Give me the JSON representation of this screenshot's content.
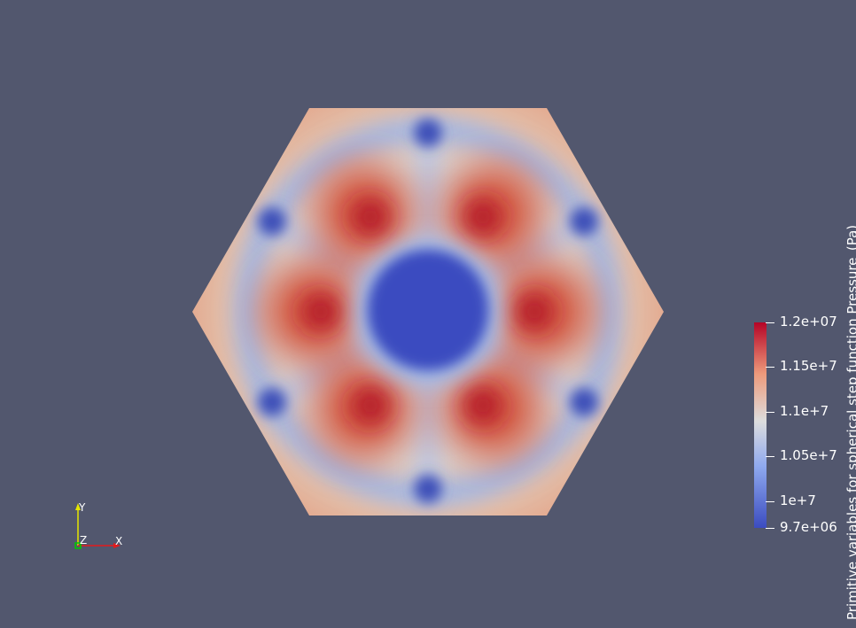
{
  "view": {
    "background_color": "#52576e"
  },
  "colorbar": {
    "title": "Primitive variables for spherical step function Pressure_(Pa)",
    "ticks": [
      {
        "label": "1.2e+07",
        "value": 12000000
      },
      {
        "label": "1.15e+7",
        "value": 11500000
      },
      {
        "label": "1.1e+7",
        "value": 11000000
      },
      {
        "label": "1.05e+7",
        "value": 10500000
      },
      {
        "label": "1e+7",
        "value": 10000000
      },
      {
        "label": "9.7e+06",
        "value": 9700000
      }
    ],
    "range": [
      9700000,
      12000000
    ],
    "colormap": {
      "low": "#3b4cc0",
      "mid": "#dddddd",
      "high": "#b40426"
    }
  },
  "axes": {
    "x_label": "X",
    "y_label": "Y",
    "z_label": "Z",
    "x_color": "#e31a1c",
    "y_color": "#e6e600",
    "z_color": "#00cc00"
  }
}
